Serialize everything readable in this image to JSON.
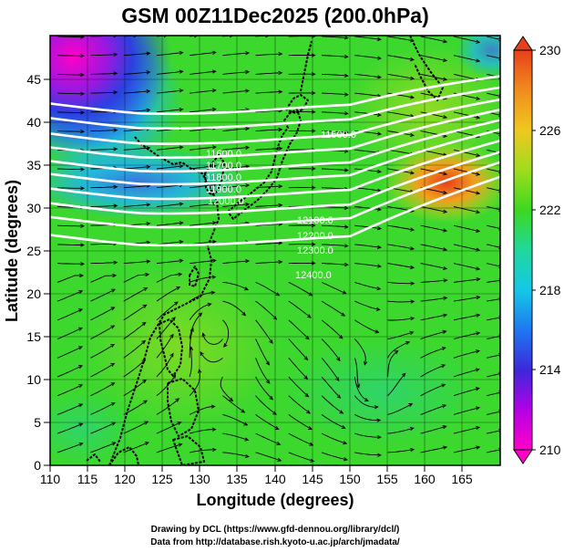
{
  "title": "GSM 00Z11Dec2025 (200.0hPa)",
  "xlabel": "Longitude (degrees)",
  "ylabel": "Latitude (degrees)",
  "x_ticks": [
    "110",
    "115",
    "120",
    "125",
    "130",
    "135",
    "140",
    "145",
    "150",
    "155",
    "160",
    "165"
  ],
  "y_ticks": [
    "0",
    "5",
    "10",
    "15",
    "20",
    "25",
    "30",
    "35",
    "40",
    "45"
  ],
  "colorbar_ticks": [
    "210",
    "214",
    "218",
    "222",
    "226",
    "230"
  ],
  "credit_line1": "Drawing by DCL (https://www.gfd-dennou.org/library/dcl/)",
  "credit_line2": "Data from http://database.rish.kyoto-u.ac.jp/arch/jmadata/",
  "contour_labels": [
    "11500.0",
    "11600.0",
    "11700.0",
    "11800.0",
    "11900.0",
    "12000.0",
    "12100.0",
    "12200.0",
    "12300.0",
    "12400.0"
  ],
  "colors": {
    "streamline": "#000000",
    "contour": "#ffffff",
    "coast": "#000000",
    "colormap_low": "#ff00c8",
    "colormap_high": "#e8401a"
  },
  "chart_data": {
    "type": "heatmap",
    "title": "GSM 00Z11Dec2025 (200.0hPa)",
    "xlabel": "Longitude (degrees)",
    "ylabel": "Latitude (degrees)",
    "xlim": [
      110,
      170
    ],
    "ylim": [
      0,
      50
    ],
    "x_ticks": [
      110,
      115,
      120,
      125,
      130,
      135,
      140,
      145,
      150,
      155,
      160,
      165
    ],
    "y_ticks": [
      0,
      5,
      10,
      15,
      20,
      25,
      30,
      35,
      40,
      45
    ],
    "grid": true,
    "colorbar": {
      "min": 210,
      "max": 230,
      "ticks": [
        210,
        214,
        218,
        222,
        226,
        230
      ]
    },
    "field_values_by_region": [
      {
        "region": "northwest corner (110E,48N)",
        "value": 211
      },
      {
        "region": "around 115E,40N",
        "value": 217
      },
      {
        "region": "around 140E,45N",
        "value": 221
      },
      {
        "region": "around 160E,35N",
        "value": 226
      },
      {
        "region": "around 130E,20N",
        "value": 221
      },
      {
        "region": "around 150E,10N",
        "value": 220
      }
    ],
    "contours": [
      {
        "label": "11500.0",
        "lon": 150,
        "lat": 40
      },
      {
        "label": "11600.0",
        "lon": 129,
        "lat": 37
      },
      {
        "label": "11700.0",
        "lon": 129,
        "lat": 35.5
      },
      {
        "label": "11800.0",
        "lon": 129,
        "lat": 34.5
      },
      {
        "label": "11900.0",
        "lon": 129,
        "lat": 33.5
      },
      {
        "label": "12000.0",
        "lon": 131,
        "lat": 31.5
      },
      {
        "label": "12100.0",
        "lon": 147,
        "lat": 29
      },
      {
        "label": "12200.0",
        "lon": 146,
        "lat": 27.5
      },
      {
        "label": "12300.0",
        "lon": 147,
        "lat": 26.5
      },
      {
        "label": "12400.0",
        "lon": 147,
        "lat": 23
      }
    ]
  }
}
